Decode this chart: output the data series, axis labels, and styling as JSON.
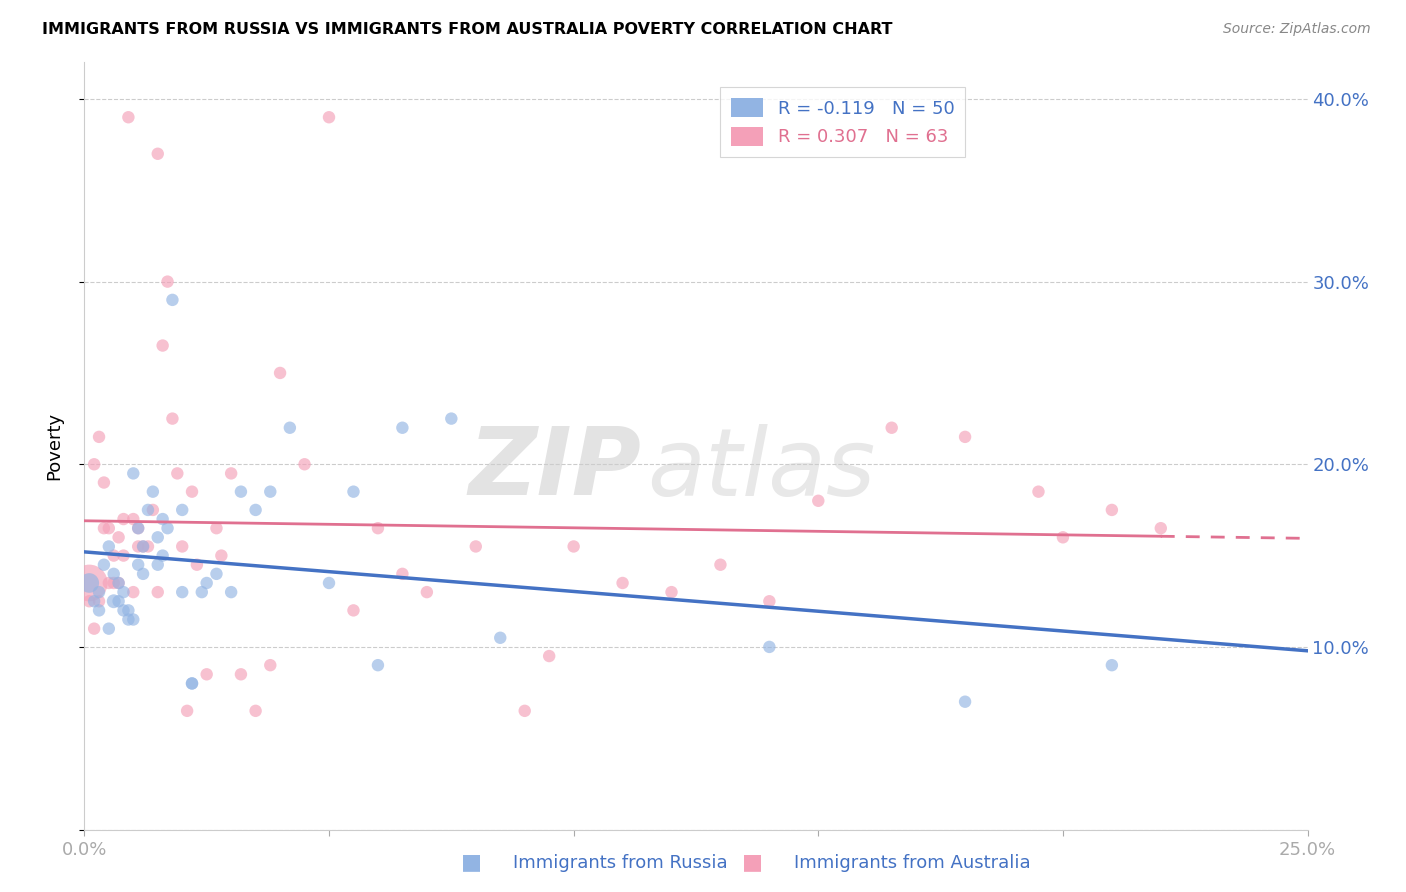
{
  "title": "IMMIGRANTS FROM RUSSIA VS IMMIGRANTS FROM AUSTRALIA POVERTY CORRELATION CHART",
  "source": "Source: ZipAtlas.com",
  "xlabel_blue": "Immigrants from Russia",
  "xlabel_pink": "Immigrants from Australia",
  "ylabel": "Poverty",
  "x_min": 0.0,
  "x_max": 0.25,
  "y_min": 0.0,
  "y_max": 0.42,
  "color_blue": "#92b4e3",
  "color_pink": "#f4a0b8",
  "line_color_blue": "#4472c4",
  "line_color_pink": "#e07090",
  "legend_R_blue": "R = -0.119",
  "legend_N_blue": "N = 50",
  "legend_R_pink": "R = 0.307",
  "legend_N_pink": "N = 63",
  "russia_x": [
    0.001,
    0.002,
    0.003,
    0.003,
    0.004,
    0.005,
    0.005,
    0.006,
    0.006,
    0.007,
    0.007,
    0.008,
    0.008,
    0.009,
    0.009,
    0.01,
    0.01,
    0.011,
    0.011,
    0.012,
    0.012,
    0.013,
    0.014,
    0.015,
    0.015,
    0.016,
    0.016,
    0.017,
    0.018,
    0.02,
    0.02,
    0.022,
    0.022,
    0.024,
    0.025,
    0.027,
    0.03,
    0.032,
    0.035,
    0.038,
    0.042,
    0.05,
    0.055,
    0.06,
    0.065,
    0.075,
    0.085,
    0.14,
    0.18,
    0.21
  ],
  "russia_y": [
    0.135,
    0.125,
    0.12,
    0.13,
    0.145,
    0.155,
    0.11,
    0.125,
    0.14,
    0.135,
    0.125,
    0.12,
    0.13,
    0.115,
    0.12,
    0.195,
    0.115,
    0.165,
    0.145,
    0.155,
    0.14,
    0.175,
    0.185,
    0.145,
    0.16,
    0.17,
    0.15,
    0.165,
    0.29,
    0.13,
    0.175,
    0.08,
    0.08,
    0.13,
    0.135,
    0.14,
    0.13,
    0.185,
    0.175,
    0.185,
    0.22,
    0.135,
    0.185,
    0.09,
    0.22,
    0.225,
    0.105,
    0.1,
    0.07,
    0.09
  ],
  "russia_size": [
    200,
    80,
    80,
    80,
    80,
    80,
    80,
    100,
    80,
    80,
    80,
    80,
    80,
    80,
    80,
    80,
    80,
    80,
    80,
    80,
    80,
    80,
    80,
    80,
    80,
    80,
    80,
    80,
    80,
    80,
    80,
    80,
    80,
    80,
    80,
    80,
    80,
    80,
    80,
    80,
    80,
    80,
    80,
    80,
    80,
    80,
    80,
    80,
    80,
    80
  ],
  "australia_x": [
    0.001,
    0.001,
    0.002,
    0.002,
    0.003,
    0.003,
    0.004,
    0.004,
    0.005,
    0.005,
    0.006,
    0.006,
    0.007,
    0.007,
    0.008,
    0.008,
    0.009,
    0.01,
    0.01,
    0.011,
    0.011,
    0.012,
    0.013,
    0.014,
    0.015,
    0.015,
    0.016,
    0.017,
    0.018,
    0.019,
    0.02,
    0.021,
    0.022,
    0.023,
    0.025,
    0.027,
    0.028,
    0.03,
    0.032,
    0.035,
    0.038,
    0.04,
    0.045,
    0.05,
    0.055,
    0.06,
    0.065,
    0.07,
    0.08,
    0.09,
    0.095,
    0.1,
    0.11,
    0.12,
    0.13,
    0.14,
    0.15,
    0.165,
    0.18,
    0.195,
    0.2,
    0.21,
    0.22
  ],
  "australia_y": [
    0.135,
    0.125,
    0.11,
    0.2,
    0.125,
    0.215,
    0.165,
    0.19,
    0.135,
    0.165,
    0.15,
    0.135,
    0.16,
    0.135,
    0.15,
    0.17,
    0.39,
    0.13,
    0.17,
    0.155,
    0.165,
    0.155,
    0.155,
    0.175,
    0.37,
    0.13,
    0.265,
    0.3,
    0.225,
    0.195,
    0.155,
    0.065,
    0.185,
    0.145,
    0.085,
    0.165,
    0.15,
    0.195,
    0.085,
    0.065,
    0.09,
    0.25,
    0.2,
    0.39,
    0.12,
    0.165,
    0.14,
    0.13,
    0.155,
    0.065,
    0.095,
    0.155,
    0.135,
    0.13,
    0.145,
    0.125,
    0.18,
    0.22,
    0.215,
    0.185,
    0.16,
    0.175,
    0.165
  ],
  "australia_size": [
    700,
    80,
    80,
    80,
    80,
    80,
    80,
    80,
    80,
    80,
    80,
    80,
    80,
    80,
    80,
    80,
    80,
    80,
    80,
    80,
    80,
    80,
    80,
    80,
    80,
    80,
    80,
    80,
    80,
    80,
    80,
    80,
    80,
    80,
    80,
    80,
    80,
    80,
    80,
    80,
    80,
    80,
    80,
    80,
    80,
    80,
    80,
    80,
    80,
    80,
    80,
    80,
    80,
    80,
    80,
    80,
    80,
    80,
    80,
    80,
    80,
    80,
    80
  ]
}
